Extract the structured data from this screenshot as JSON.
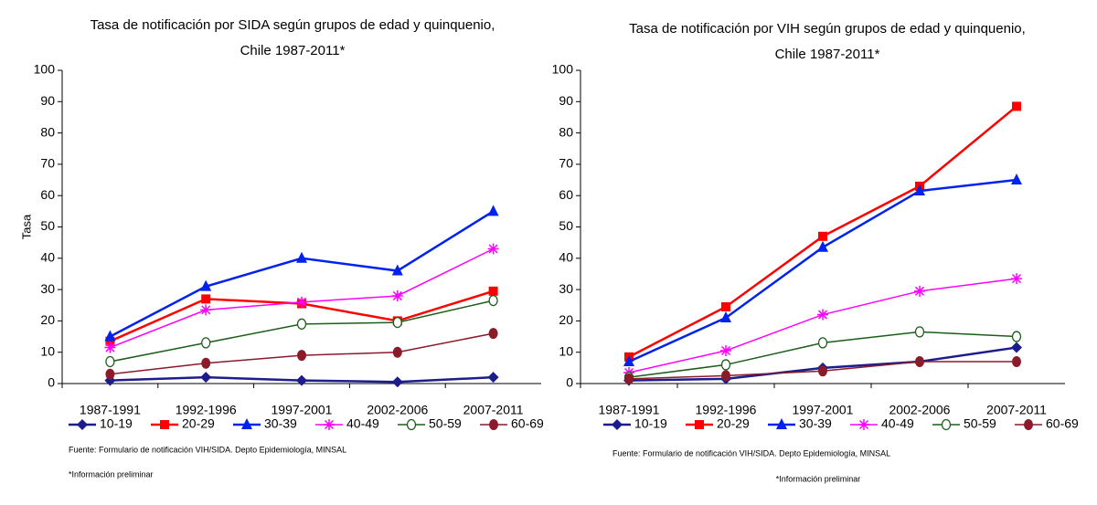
{
  "chart_data": [
    {
      "type": "line",
      "title": [
        "Tasa de notificación por SIDA según grupos de edad y quinquenio,",
        "Chile 1987-2011*"
      ],
      "y_label": "Tasa",
      "categories": [
        "1987-1991",
        "1992-1996",
        "1997-2001",
        "2002-2006",
        "2007-2011"
      ],
      "ylim": [
        0,
        100
      ],
      "yticks": [
        0,
        10,
        20,
        30,
        40,
        50,
        60,
        70,
        80,
        90,
        100
      ],
      "series": [
        {
          "name": "10-19",
          "color": "#1c1c8c",
          "marker": "diamond",
          "values": [
            1,
            2,
            1,
            0.5,
            2
          ]
        },
        {
          "name": "20-29",
          "color": "#ff0000",
          "marker": "square",
          "values": [
            13.5,
            27,
            25.5,
            20,
            29.5
          ]
        },
        {
          "name": "30-39",
          "color": "#0022ee",
          "marker": "triangle",
          "values": [
            15,
            31,
            40,
            36,
            55
          ]
        },
        {
          "name": "40-49",
          "color": "#ff00ff",
          "marker": "star",
          "values": [
            11.5,
            23.5,
            26,
            28,
            43
          ]
        },
        {
          "name": "50-59",
          "color": "#1a5e1a",
          "marker": "open-circle",
          "values": [
            7,
            13,
            19,
            19.5,
            26.5
          ]
        },
        {
          "name": "60-69",
          "color": "#8b1a2a",
          "marker": "circle",
          "values": [
            3,
            6.5,
            9,
            10,
            16
          ]
        }
      ],
      "notes": [
        "Fuente: Formulario de notificación VIH/SIDA. Depto Epidemiología, MINSAL",
        "*Información preliminar"
      ]
    },
    {
      "type": "line",
      "title": [
        "Tasa de notificación por VIH según grupos de edad y quinquenio,",
        "Chile 1987-2011*"
      ],
      "categories": [
        "1987-1991",
        "1992-1996",
        "1997-2001",
        "2002-2006",
        "2007-2011"
      ],
      "ylim": [
        0,
        100
      ],
      "yticks": [
        0,
        10,
        20,
        30,
        40,
        50,
        60,
        70,
        80,
        90,
        100
      ],
      "series": [
        {
          "name": "10-19",
          "color": "#1c1c8c",
          "marker": "diamond",
          "values": [
            1,
            1.5,
            5,
            7,
            11.5
          ]
        },
        {
          "name": "20-29",
          "color": "#ff0000",
          "marker": "square",
          "values": [
            8.5,
            24.5,
            47,
            63,
            88.5
          ]
        },
        {
          "name": "30-39",
          "color": "#0022ee",
          "marker": "triangle",
          "values": [
            7,
            21,
            43.5,
            61.5,
            65
          ]
        },
        {
          "name": "40-49",
          "color": "#ff00ff",
          "marker": "star",
          "values": [
            3.5,
            10.5,
            22,
            29.5,
            33.5
          ]
        },
        {
          "name": "50-59",
          "color": "#1a5e1a",
          "marker": "open-circle",
          "values": [
            2,
            6,
            13,
            16.5,
            15
          ]
        },
        {
          "name": "60-69",
          "color": "#8b1a2a",
          "marker": "circle",
          "values": [
            1.5,
            2.5,
            4,
            7,
            7
          ]
        }
      ],
      "notes": [
        "Fuente: Formulario de notificación VIH/SIDA. Depto Epidemiología, MINSAL",
        "*Información preliminar"
      ]
    }
  ]
}
